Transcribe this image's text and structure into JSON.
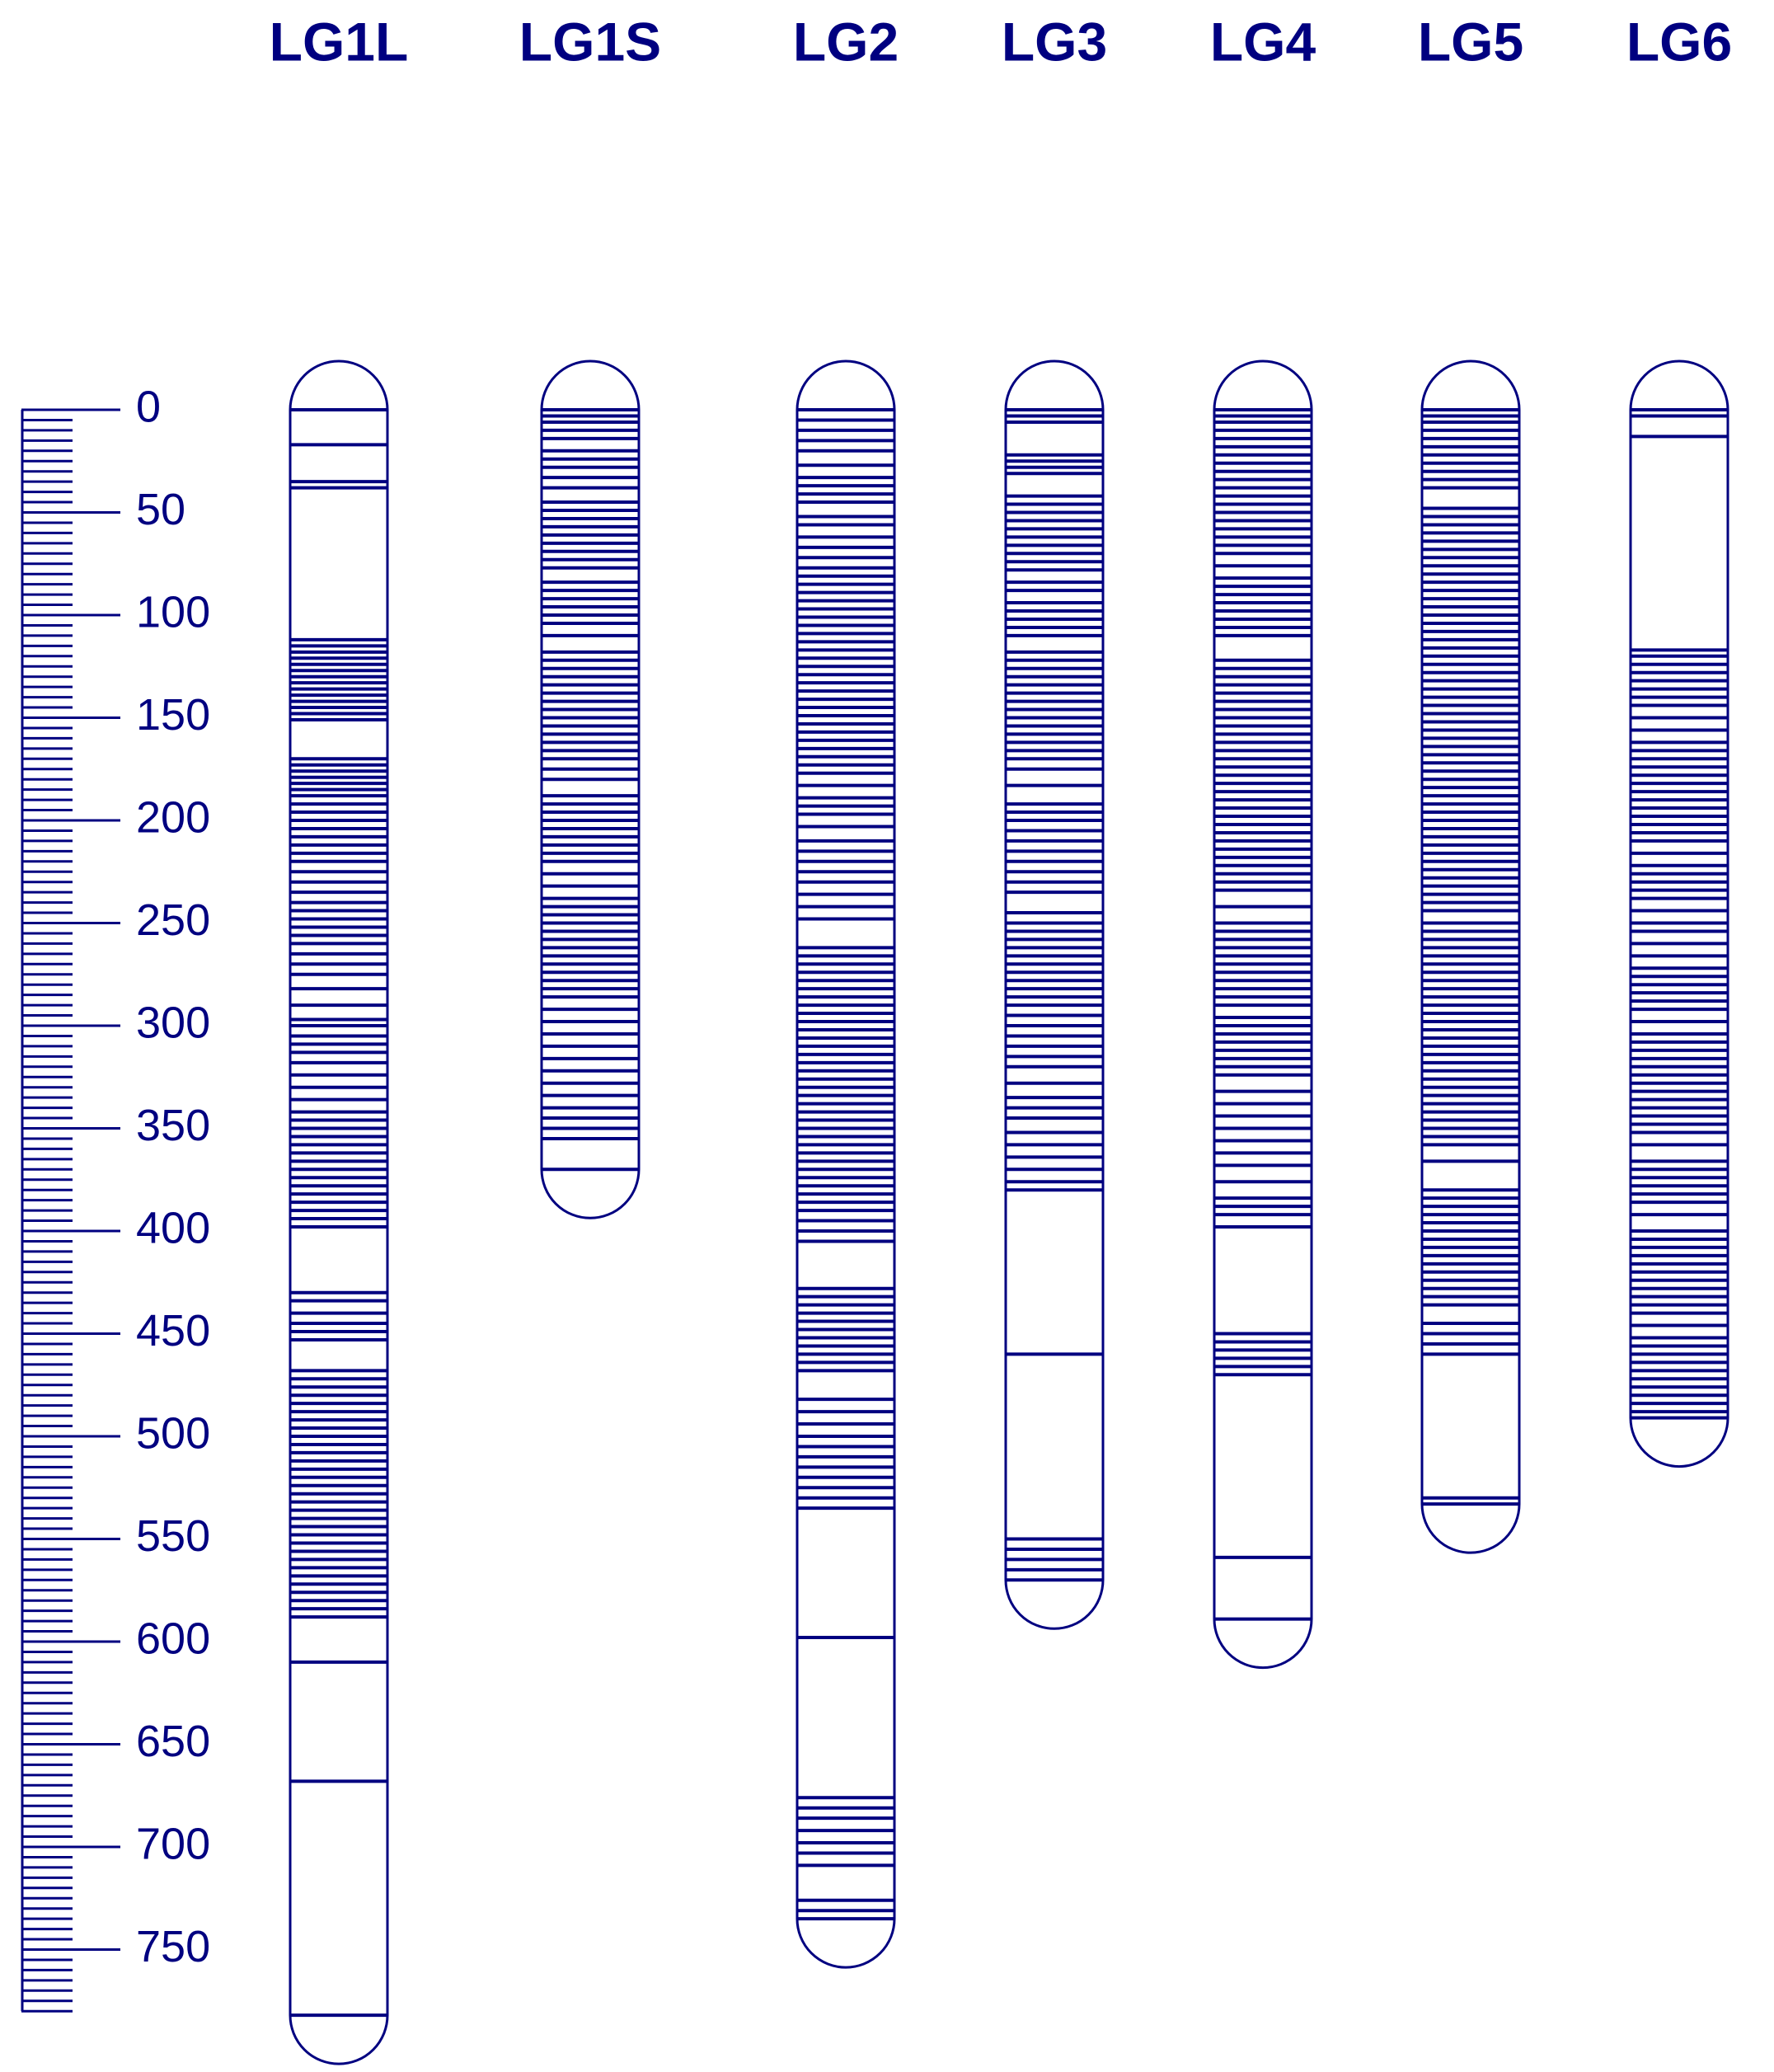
{
  "chart_data": {
    "type": "linkage-map",
    "color": "#000080",
    "ylim": [
      0,
      780
    ],
    "yticks": [
      0,
      50,
      100,
      150,
      200,
      250,
      300,
      350,
      400,
      450,
      500,
      550,
      600,
      650,
      700,
      750
    ],
    "minor_yticks": [
      0,
      5,
      10,
      15,
      20,
      25,
      30,
      35,
      40,
      45,
      50,
      55,
      60,
      65,
      70,
      75,
      80,
      85,
      90,
      95,
      100,
      105,
      110,
      115,
      120,
      125,
      130,
      135,
      140,
      145,
      150,
      155,
      160,
      165,
      170,
      175,
      180,
      185,
      190,
      195,
      200,
      205,
      210,
      215,
      220,
      225,
      230,
      235,
      240,
      245,
      250,
      255,
      260,
      265,
      270,
      275,
      280,
      285,
      290,
      295,
      300,
      305,
      310,
      315,
      320,
      325,
      330,
      335,
      340,
      345,
      350,
      355,
      360,
      365,
      370,
      375,
      380,
      385,
      390,
      395,
      400,
      405,
      410,
      415,
      420,
      425,
      430,
      435,
      440,
      445,
      450,
      455,
      460,
      465,
      470,
      475,
      480,
      485,
      490,
      495,
      500,
      505,
      510,
      515,
      520,
      525,
      530,
      535,
      540,
      545,
      550,
      555,
      560,
      565,
      570,
      575,
      580,
      585,
      590,
      595,
      600,
      605,
      610,
      615,
      620,
      625,
      630,
      635,
      640,
      645,
      650,
      655,
      660,
      665,
      670,
      675,
      680,
      685,
      690,
      695,
      700,
      705,
      710,
      715,
      720,
      725,
      730,
      735,
      740,
      745,
      750,
      755,
      760,
      765,
      770,
      775,
      780
    ],
    "groups": [
      {
        "name": "LG1L",
        "end": 782,
        "markers": [
          0,
          17,
          35,
          38,
          112,
          115,
          118,
          121,
          124,
          127,
          130,
          133,
          136,
          139,
          142,
          145,
          148,
          151,
          170,
          173,
          176,
          179,
          182,
          185,
          188,
          192,
          196,
          200,
          204,
          208,
          212,
          216,
          220,
          225,
          230,
          235,
          240,
          244,
          248,
          252,
          256,
          260,
          265,
          270,
          275,
          282,
          290,
          297,
          300,
          305,
          309,
          313,
          318,
          324,
          330,
          336,
          342,
          346,
          350,
          354,
          358,
          362,
          366,
          370,
          374,
          378,
          382,
          386,
          390,
          394,
          398,
          430,
          434,
          440,
          445,
          449,
          453,
          468,
          472,
          476,
          480,
          484,
          488,
          492,
          496,
          500,
          504,
          508,
          512,
          516,
          520,
          524,
          528,
          532,
          536,
          540,
          544,
          548,
          552,
          556,
          560,
          564,
          568,
          572,
          576,
          580,
          584,
          588,
          610,
          668,
          782
        ]
      },
      {
        "name": "LG1S",
        "end": 370,
        "markers": [
          0,
          3,
          6,
          10,
          14,
          20,
          24,
          28,
          33,
          38,
          45,
          49,
          53,
          57,
          61,
          65,
          69,
          73,
          77,
          84,
          88,
          92,
          96,
          100,
          104,
          110,
          118,
          122,
          126,
          130,
          134,
          138,
          142,
          146,
          150,
          154,
          158,
          162,
          166,
          170,
          175,
          180,
          188,
          192,
          196,
          200,
          204,
          208,
          212,
          216,
          220,
          226,
          232,
          238,
          242,
          246,
          250,
          254,
          258,
          262,
          266,
          270,
          274,
          278,
          282,
          286,
          292,
          298,
          304,
          310,
          316,
          322,
          328,
          334,
          340,
          345,
          350,
          355,
          370
        ]
      },
      {
        "name": "LG2",
        "end": 735,
        "markers": [
          0,
          5,
          10,
          15,
          20,
          27,
          33,
          37,
          41,
          45,
          52,
          56,
          62,
          67,
          72,
          77,
          81,
          85,
          89,
          93,
          97,
          101,
          105,
          109,
          113,
          117,
          121,
          125,
          129,
          133,
          137,
          141,
          145,
          149,
          153,
          157,
          161,
          165,
          169,
          173,
          177,
          183,
          189,
          193,
          197,
          203,
          210,
          215,
          220,
          225,
          230,
          236,
          242,
          248,
          262,
          266,
          270,
          274,
          278,
          282,
          286,
          290,
          294,
          298,
          302,
          306,
          310,
          314,
          318,
          322,
          326,
          330,
          334,
          338,
          342,
          346,
          350,
          354,
          358,
          362,
          366,
          370,
          374,
          378,
          382,
          386,
          390,
          395,
          400,
          405,
          428,
          432,
          436,
          440,
          444,
          448,
          452,
          456,
          460,
          464,
          468,
          482,
          488,
          494,
          500,
          505,
          510,
          515,
          520,
          525,
          530,
          535,
          598,
          676,
          681,
          686,
          692,
          698,
          703,
          709,
          726,
          731,
          735
        ]
      },
      {
        "name": "LG3",
        "end": 570,
        "markers": [
          0,
          3,
          6,
          22,
          25,
          28,
          31,
          42,
          46,
          50,
          54,
          58,
          62,
          66,
          70,
          74,
          78,
          84,
          88,
          94,
          98,
          102,
          106,
          110,
          118,
          122,
          126,
          130,
          134,
          138,
          142,
          146,
          150,
          154,
          158,
          162,
          166,
          170,
          175,
          183,
          192,
          196,
          200,
          205,
          210,
          215,
          220,
          225,
          230,
          235,
          245,
          250,
          254,
          258,
          262,
          266,
          270,
          274,
          278,
          282,
          286,
          290,
          295,
          300,
          305,
          310,
          315,
          320,
          328,
          335,
          340,
          345,
          352,
          358,
          364,
          370,
          376,
          380,
          460,
          550,
          555,
          560,
          565,
          570
        ]
      },
      {
        "name": "LG4",
        "end": 589,
        "markers": [
          0,
          3,
          6,
          10,
          14,
          18,
          22,
          26,
          30,
          34,
          38,
          42,
          46,
          50,
          54,
          58,
          62,
          66,
          70,
          76,
          82,
          86,
          90,
          94,
          98,
          102,
          106,
          110,
          122,
          126,
          130,
          134,
          138,
          142,
          146,
          150,
          154,
          158,
          162,
          166,
          170,
          174,
          178,
          182,
          186,
          190,
          194,
          198,
          202,
          206,
          210,
          214,
          218,
          222,
          226,
          230,
          234,
          242,
          250,
          254,
          258,
          262,
          266,
          270,
          274,
          278,
          282,
          286,
          290,
          296,
          300,
          304,
          308,
          312,
          316,
          320,
          324,
          332,
          338,
          344,
          350,
          356,
          362,
          368,
          376,
          384,
          388,
          392,
          398,
          450,
          454,
          458,
          462,
          466,
          470,
          559,
          589
        ]
      },
      {
        "name": "LG5",
        "end": 533,
        "markers": [
          0,
          3,
          6,
          10,
          14,
          18,
          22,
          26,
          30,
          34,
          38,
          48,
          52,
          56,
          60,
          64,
          68,
          72,
          76,
          80,
          84,
          88,
          92,
          96,
          100,
          104,
          108,
          112,
          116,
          120,
          124,
          128,
          132,
          136,
          140,
          144,
          148,
          152,
          156,
          160,
          164,
          168,
          172,
          176,
          180,
          184,
          188,
          192,
          196,
          200,
          204,
          208,
          212,
          216,
          220,
          224,
          228,
          232,
          236,
          240,
          244,
          250,
          254,
          258,
          262,
          266,
          270,
          274,
          278,
          282,
          286,
          290,
          294,
          298,
          302,
          306,
          310,
          314,
          318,
          322,
          326,
          330,
          334,
          338,
          342,
          346,
          350,
          354,
          358,
          366,
          380,
          384,
          388,
          392,
          396,
          400,
          404,
          408,
          412,
          416,
          420,
          424,
          428,
          432,
          436,
          445,
          450,
          455,
          460,
          530,
          533
        ]
      },
      {
        "name": "LG6",
        "end": 491,
        "markers": [
          0,
          3,
          13,
          117,
          120,
          124,
          128,
          132,
          136,
          140,
          144,
          150,
          156,
          162,
          166,
          170,
          174,
          178,
          182,
          186,
          190,
          194,
          198,
          202,
          206,
          210,
          216,
          222,
          226,
          230,
          234,
          238,
          244,
          250,
          254,
          260,
          266,
          272,
          276,
          280,
          284,
          288,
          292,
          298,
          304,
          308,
          312,
          316,
          320,
          324,
          328,
          332,
          336,
          340,
          344,
          348,
          352,
          358,
          366,
          370,
          374,
          378,
          382,
          386,
          392,
          400,
          404,
          408,
          412,
          416,
          420,
          424,
          428,
          432,
          436,
          440,
          446,
          452,
          456,
          460,
          464,
          468,
          472,
          476,
          480,
          484,
          488,
          491
        ]
      }
    ]
  }
}
